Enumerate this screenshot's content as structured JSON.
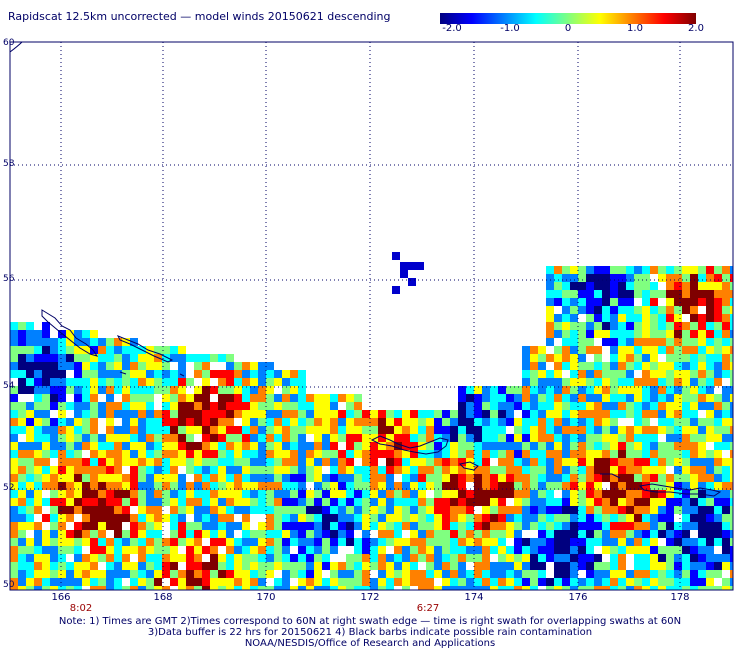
{
  "title": "Rapidscat 12.5km uncorrected — model winds 20150621 descending",
  "colorbar": {
    "labels": [
      "-2.0",
      "-1.0",
      "0",
      "1.0",
      "2.0"
    ],
    "values": [
      -2.0,
      -1.0,
      0,
      1.0,
      2.0
    ],
    "colors": [
      "#00007f",
      "#0000ff",
      "#0080ff",
      "#00ffff",
      "#80ff80",
      "#ffff00",
      "#ff8000",
      "#ff0000",
      "#7f0000"
    ],
    "min": -2.0,
    "max": 2.0
  },
  "lat_labels": [
    "60",
    "58",
    "56",
    "54",
    "52",
    "50"
  ],
  "lon_labels": [
    "166",
    "168",
    "170",
    "172",
    "174",
    "176",
    "178"
  ],
  "time_labels": [
    "8:02",
    "6:27"
  ],
  "map_bounds": {
    "lon_min": 165,
    "lon_max": 179,
    "lat_min": 50,
    "lat_max": 60
  },
  "notes": [
    "Note: 1) Times are GMT 2)Times correspond to 60N at right swath edge — time is right swath for overlapping swaths at 60N",
    "3)Data buffer is 22 hrs for 20150621 4) Black barbs indicate possible rain contamination",
    "NOAA/NESDIS/Office of Research and Applications"
  ]
}
